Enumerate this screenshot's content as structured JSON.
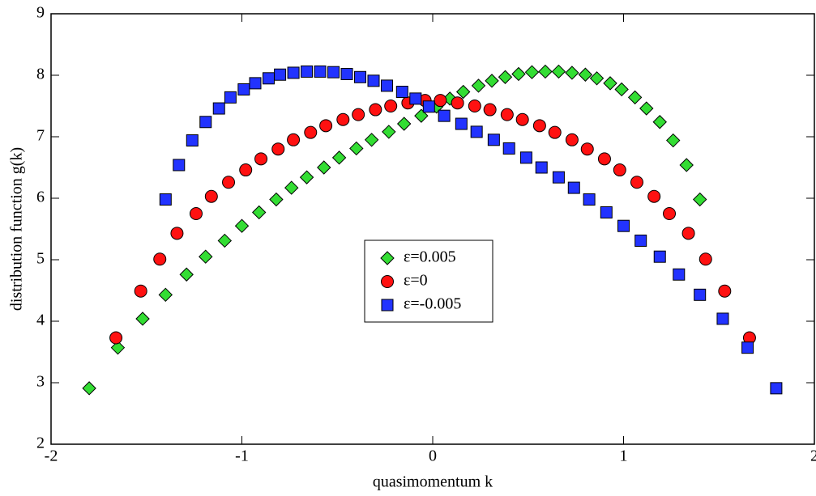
{
  "chart_data": {
    "type": "scatter",
    "xlabel": "quasimomentum k",
    "ylabel": "distribution function g(k)",
    "xlim": [
      -2,
      2
    ],
    "xticks": [
      -2,
      -1,
      0,
      1,
      2
    ],
    "ylim": [
      2,
      9
    ],
    "yticks": [
      2,
      3,
      4,
      5,
      6,
      7,
      8,
      9
    ],
    "grid": false,
    "legend": "center",
    "series": [
      {
        "name": "ε=0.005",
        "color": "#33dd33",
        "marker": "diamond",
        "x": [
          -1.8,
          -1.65,
          -1.52,
          -1.4,
          -1.29,
          -1.19,
          -1.09,
          -1.0,
          -0.91,
          -0.82,
          -0.74,
          -0.66,
          -0.57,
          -0.49,
          -0.4,
          -0.32,
          -0.23,
          -0.15,
          -0.06,
          0.02,
          0.09,
          0.16,
          0.24,
          0.31,
          0.38,
          0.45,
          0.52,
          0.59,
          0.66,
          0.73,
          0.8,
          0.86,
          0.93,
          0.99,
          1.06,
          1.12,
          1.19,
          1.26,
          1.33,
          1.4
        ],
        "values": [
          2.91,
          3.57,
          4.04,
          4.43,
          4.76,
          5.05,
          5.31,
          5.55,
          5.77,
          5.98,
          6.17,
          6.34,
          6.5,
          6.66,
          6.81,
          6.95,
          7.08,
          7.21,
          7.34,
          7.49,
          7.62,
          7.73,
          7.83,
          7.91,
          7.97,
          8.02,
          8.05,
          8.06,
          8.06,
          8.04,
          8.01,
          7.95,
          7.87,
          7.77,
          7.64,
          7.46,
          7.24,
          6.94,
          6.54,
          5.98
        ]
      },
      {
        "name": "ε=0",
        "color": "#ff1111",
        "marker": "circle",
        "x": [
          -1.66,
          -1.53,
          -1.43,
          -1.34,
          -1.24,
          -1.16,
          -1.07,
          -0.98,
          -0.9,
          -0.81,
          -0.73,
          -0.64,
          -0.56,
          -0.47,
          -0.39,
          -0.3,
          -0.22,
          -0.13,
          -0.04,
          0.04,
          0.13,
          0.22,
          0.3,
          0.39,
          0.47,
          0.56,
          0.64,
          0.73,
          0.81,
          0.9,
          0.98,
          1.07,
          1.16,
          1.24,
          1.34,
          1.43,
          1.53,
          1.66
        ],
        "values": [
          3.73,
          4.49,
          5.01,
          5.43,
          5.75,
          6.03,
          6.26,
          6.46,
          6.64,
          6.8,
          6.95,
          7.07,
          7.18,
          7.28,
          7.36,
          7.44,
          7.5,
          7.55,
          7.59,
          7.59,
          7.55,
          7.5,
          7.44,
          7.36,
          7.28,
          7.18,
          7.07,
          6.95,
          6.8,
          6.64,
          6.46,
          6.26,
          6.03,
          5.75,
          5.43,
          5.01,
          4.49,
          3.73
        ]
      },
      {
        "name": "ε=-0.005",
        "color": "#2233ff",
        "marker": "square",
        "x": [
          -1.4,
          -1.33,
          -1.26,
          -1.19,
          -1.12,
          -1.06,
          -0.99,
          -0.93,
          -0.86,
          -0.8,
          -0.73,
          -0.66,
          -0.59,
          -0.52,
          -0.45,
          -0.38,
          -0.31,
          -0.24,
          -0.16,
          -0.09,
          -0.02,
          0.06,
          0.15,
          0.23,
          0.32,
          0.4,
          0.49,
          0.57,
          0.66,
          0.74,
          0.82,
          0.91,
          1.0,
          1.09,
          1.19,
          1.29,
          1.4,
          1.52,
          1.65,
          1.8
        ],
        "values": [
          5.98,
          6.54,
          6.94,
          7.24,
          7.46,
          7.64,
          7.77,
          7.87,
          7.95,
          8.01,
          8.04,
          8.06,
          8.06,
          8.05,
          8.02,
          7.97,
          7.91,
          7.83,
          7.73,
          7.62,
          7.49,
          7.34,
          7.21,
          7.08,
          6.95,
          6.81,
          6.66,
          6.5,
          6.34,
          6.17,
          5.98,
          5.77,
          5.55,
          5.31,
          5.05,
          4.76,
          4.43,
          4.04,
          3.57,
          2.91
        ]
      }
    ]
  }
}
